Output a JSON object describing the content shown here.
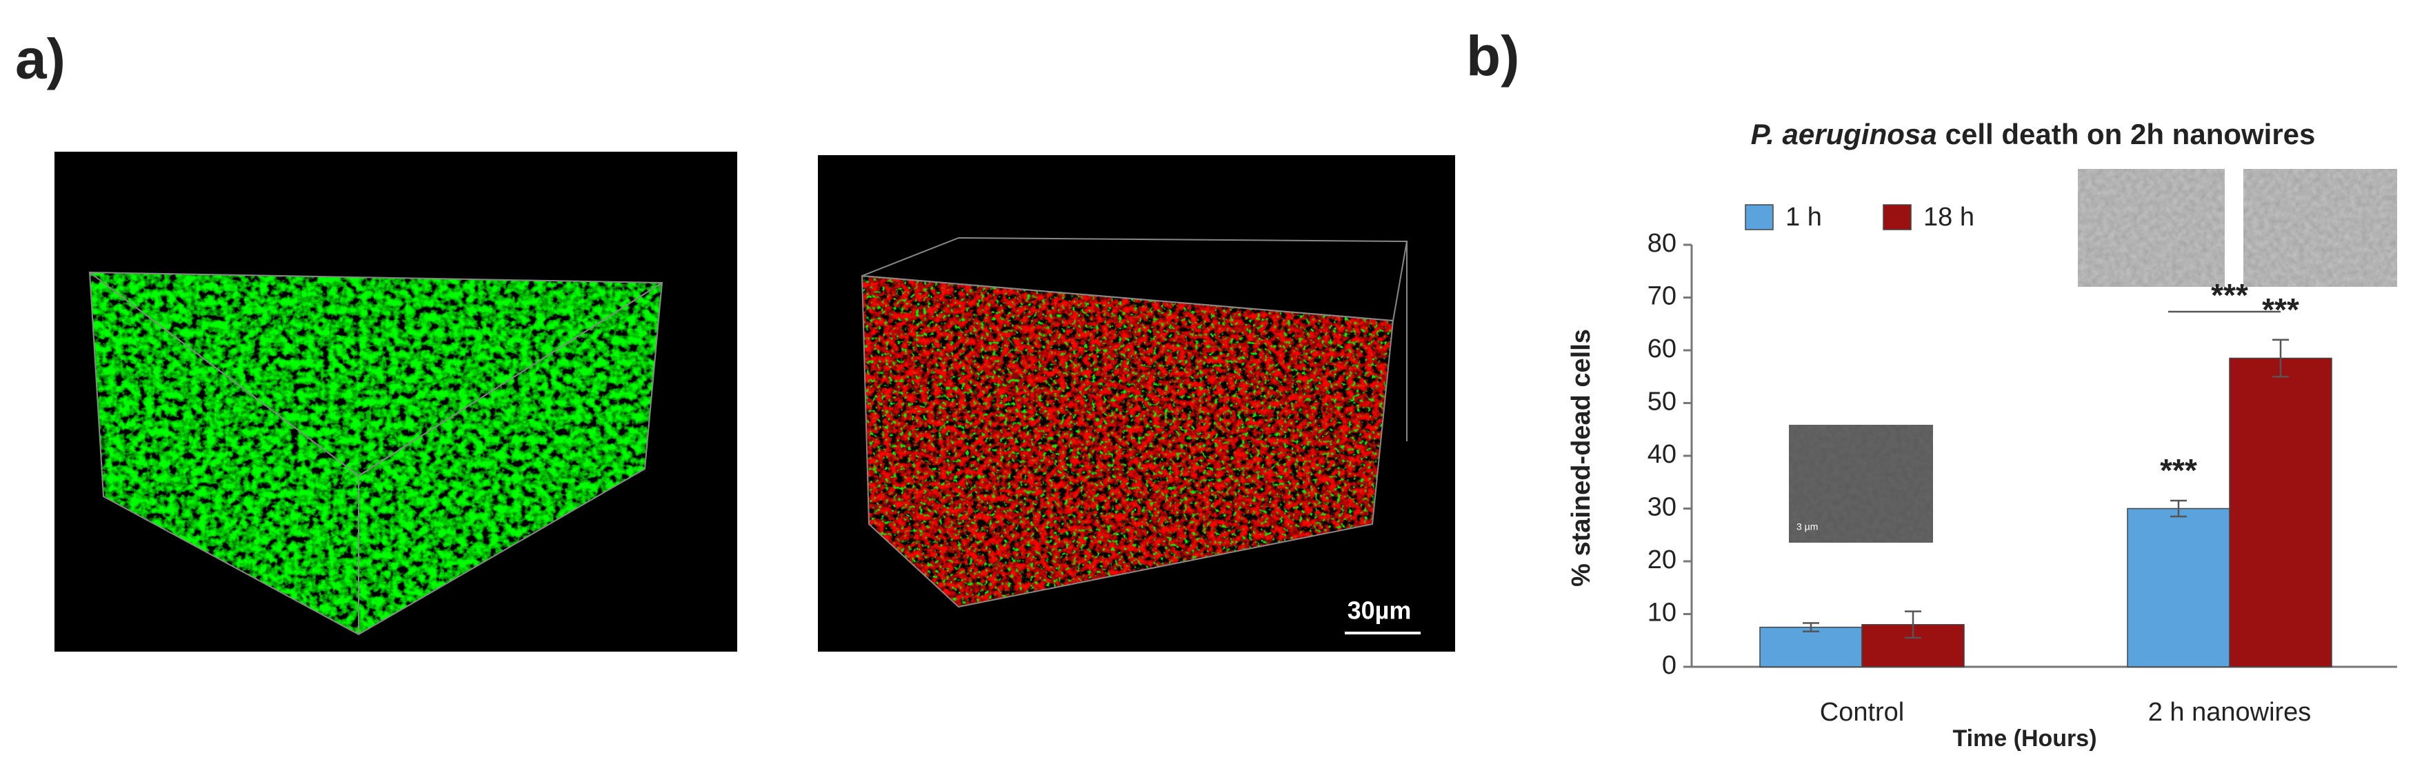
{
  "panel_labels": [
    "a)",
    "b)"
  ],
  "scale_bar": "30µm",
  "inset_scale": "3 µm",
  "chart_data": {
    "type": "bar",
    "title_parts": [
      "P. aeruginosa",
      "cell death on 2h nanowires"
    ],
    "ylabel": "% stained-dead cells",
    "xlabel": "Time (Hours)",
    "categories": [
      "Control",
      "2 h nanowires"
    ],
    "series": [
      {
        "name": "1 h",
        "color": "#5ba3dd",
        "values": [
          7.5,
          30
        ],
        "errors": [
          0.8,
          1.5
        ]
      },
      {
        "name": "18 h",
        "color": "#9b1010",
        "values": [
          8,
          58.5
        ],
        "errors": [
          2.5,
          3.5
        ]
      }
    ],
    "annotations": [
      "***",
      "***",
      "***"
    ],
    "ylim": [
      0,
      80
    ],
    "yticks": [
      0,
      10,
      20,
      30,
      40,
      50,
      60,
      70,
      80
    ],
    "grid": false,
    "legend": "top-left"
  }
}
